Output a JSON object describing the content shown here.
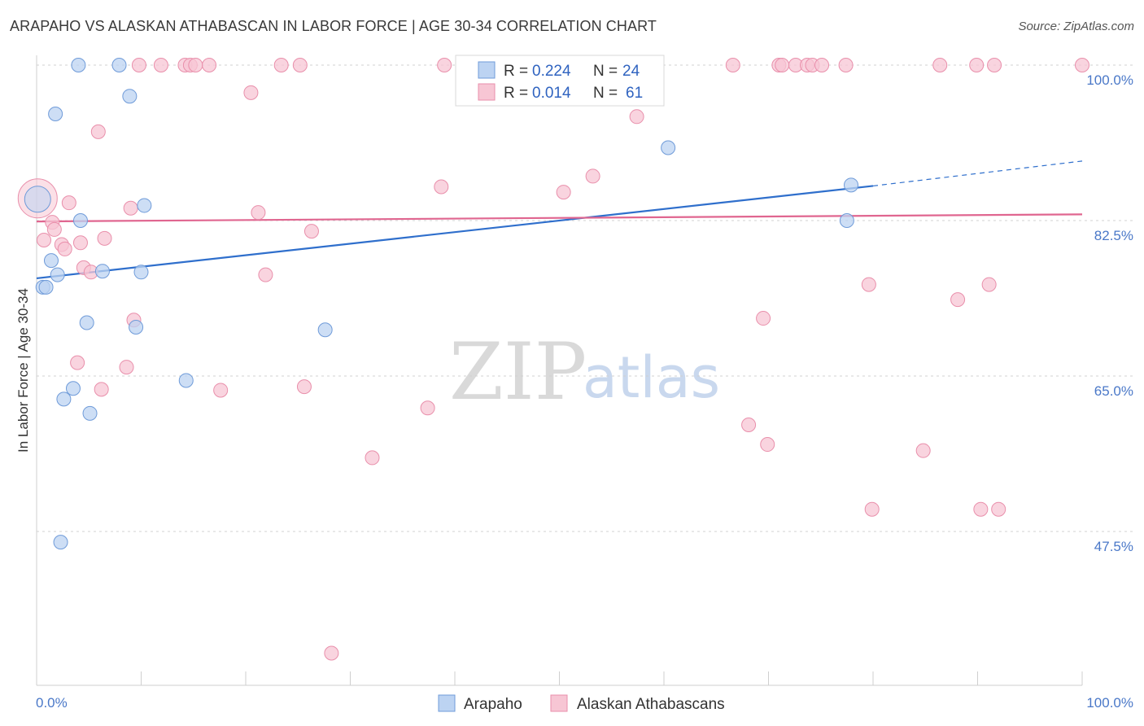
{
  "title": "ARAPAHO VS ALASKAN ATHABASCAN IN LABOR FORCE | AGE 30-34 CORRELATION CHART",
  "source": "Source: ZipAtlas.com",
  "watermark": {
    "part1": "ZIP",
    "part2": "atlas"
  },
  "colors": {
    "arapaho_fill": "#bcd3f2",
    "arapaho_stroke": "#6f9bd9",
    "arapaho_line": "#2f6fcc",
    "alaskan_fill": "#f7c6d4",
    "alaskan_stroke": "#e98fab",
    "alaskan_line": "#e06690",
    "grid": "#d0d0d0",
    "tick_label": "#4a78c8"
  },
  "legend": {
    "row1": {
      "r_label": "R =",
      "r_value": "0.224",
      "n_label": "N =",
      "n_value": "24"
    },
    "row2": {
      "r_label": "R =",
      "r_value": "0.014",
      "n_label": "N =",
      "n_value": "61"
    }
  },
  "chart_data": {
    "type": "scatter",
    "ylabel": "In Labor Force | Age 30-34",
    "xlim": [
      0,
      100
    ],
    "ylim": [
      30,
      102
    ],
    "x_tick_labels": [
      "0.0%",
      "100.0%"
    ],
    "y_ticks": [
      47.5,
      65.0,
      82.5,
      100.0
    ],
    "y_tick_labels": [
      "47.5%",
      "65.0%",
      "82.5%",
      "100.0%"
    ],
    "grid": "horizontal dashed",
    "legend_placement": "top-center",
    "series": [
      {
        "name": "Arapaho",
        "points": [
          [
            0.1,
            84.9
          ],
          [
            0.6,
            75.0
          ],
          [
            0.9,
            75.0
          ],
          [
            1.4,
            78.0
          ],
          [
            1.8,
            94.5
          ],
          [
            2.0,
            76.4
          ],
          [
            2.3,
            46.3
          ],
          [
            2.6,
            62.4
          ],
          [
            3.5,
            63.6
          ],
          [
            4.0,
            100.0
          ],
          [
            4.2,
            82.5
          ],
          [
            4.8,
            71.0
          ],
          [
            5.1,
            60.8
          ],
          [
            6.3,
            76.8
          ],
          [
            7.9,
            100.0
          ],
          [
            8.9,
            96.5
          ],
          [
            9.5,
            70.5
          ],
          [
            10.0,
            76.7
          ],
          [
            10.3,
            84.2
          ],
          [
            14.3,
            64.5
          ],
          [
            27.6,
            70.2
          ],
          [
            60.4,
            90.7
          ],
          [
            77.5,
            82.5
          ],
          [
            77.9,
            86.5
          ]
        ]
      },
      {
        "name": "Alaskan Athabascans",
        "points": [
          [
            0.1,
            85.0
          ],
          [
            0.7,
            80.3
          ],
          [
            1.5,
            82.3
          ],
          [
            1.7,
            81.5
          ],
          [
            2.4,
            79.8
          ],
          [
            2.7,
            79.3
          ],
          [
            3.1,
            84.5
          ],
          [
            3.9,
            66.5
          ],
          [
            4.2,
            80.0
          ],
          [
            4.5,
            77.2
          ],
          [
            5.2,
            76.7
          ],
          [
            5.9,
            92.5
          ],
          [
            6.2,
            63.5
          ],
          [
            6.5,
            80.5
          ],
          [
            8.6,
            66.0
          ],
          [
            9.0,
            83.9
          ],
          [
            9.3,
            71.3
          ],
          [
            9.8,
            100.0
          ],
          [
            11.9,
            100.0
          ],
          [
            14.2,
            100.0
          ],
          [
            14.7,
            100.0
          ],
          [
            15.2,
            100.0
          ],
          [
            16.5,
            100.0
          ],
          [
            17.6,
            63.4
          ],
          [
            20.5,
            96.9
          ],
          [
            21.2,
            83.4
          ],
          [
            21.9,
            76.4
          ],
          [
            23.4,
            100.0
          ],
          [
            25.2,
            100.0
          ],
          [
            25.6,
            63.8
          ],
          [
            26.3,
            81.3
          ],
          [
            28.2,
            33.8
          ],
          [
            32.1,
            55.8
          ],
          [
            37.4,
            61.4
          ],
          [
            38.7,
            86.3
          ],
          [
            39.0,
            100.0
          ],
          [
            50.4,
            85.7
          ],
          [
            53.2,
            87.5
          ],
          [
            57.4,
            94.2
          ],
          [
            66.6,
            100.0
          ],
          [
            68.1,
            59.5
          ],
          [
            69.5,
            71.5
          ],
          [
            69.9,
            57.3
          ],
          [
            71.0,
            100.0
          ],
          [
            71.3,
            100.0
          ],
          [
            72.6,
            100.0
          ],
          [
            73.7,
            100.0
          ],
          [
            74.2,
            100.0
          ],
          [
            75.1,
            100.0
          ],
          [
            77.4,
            100.0
          ],
          [
            79.6,
            75.3
          ],
          [
            79.9,
            50.0
          ],
          [
            84.8,
            56.6
          ],
          [
            86.4,
            100.0
          ],
          [
            88.1,
            73.6
          ],
          [
            89.9,
            100.0
          ],
          [
            90.3,
            50.0
          ],
          [
            91.1,
            75.3
          ],
          [
            91.6,
            100.0
          ],
          [
            92.0,
            50.0
          ],
          [
            100.0,
            100.0
          ]
        ]
      }
    ],
    "trend_lines": [
      {
        "series": "Arapaho",
        "x0": 0,
        "y0": 76.0,
        "x1": 80.0,
        "y1": 86.4,
        "dashed_to_x": 100,
        "dashed_to_y": 89.2
      },
      {
        "series": "Alaskan Athabascans",
        "x0": 0,
        "y0": 82.4,
        "x1": 100,
        "y1": 83.2
      }
    ]
  }
}
